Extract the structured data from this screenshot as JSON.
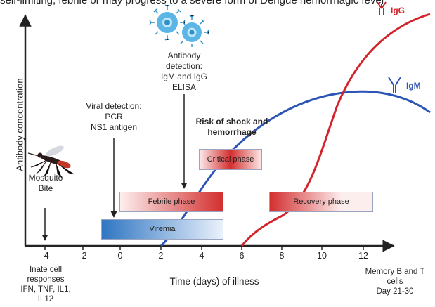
{
  "caption_fragment": "self-limiting, febrile or may progress to a severe form of Dengue hemorrhagic fever",
  "axes": {
    "y_label": "Antibody concentration",
    "x_label": "Time (days) of illness",
    "x_ticks": [
      "-4",
      "-2",
      "0",
      "2",
      "4",
      "6",
      "8",
      "10",
      "12"
    ]
  },
  "notes": {
    "innate": [
      "Inate cell",
      "responses",
      "IFN, TNF, IL1,",
      "IL12"
    ],
    "memory": [
      "Memory B and T",
      "cells",
      "Day 21-30"
    ]
  },
  "annotations": {
    "mosquito": [
      "Mosquito",
      "Bite"
    ],
    "viral_detection": [
      "Viral detection:",
      "PCR",
      "NS1 antigen"
    ],
    "antibody_detection": [
      "Antibody",
      "detection:",
      "IgM and IgG",
      "ELISA"
    ],
    "risk": [
      "Risk of shock and",
      "hemorrhage"
    ]
  },
  "phases": {
    "critical": "Critical phase",
    "febrile": "Febrile phase",
    "recovery": "Recovery phase",
    "viremia": "Viremia"
  },
  "antibodies": {
    "igg": "IgG",
    "igm": "IgM"
  },
  "colors": {
    "igg_curve": "#d3242b",
    "igm_curve": "#2d55b5",
    "phase_red": "#d32f2f",
    "phase_blue": "#2f76c2",
    "cell_blue": "#5bb6e6"
  }
}
